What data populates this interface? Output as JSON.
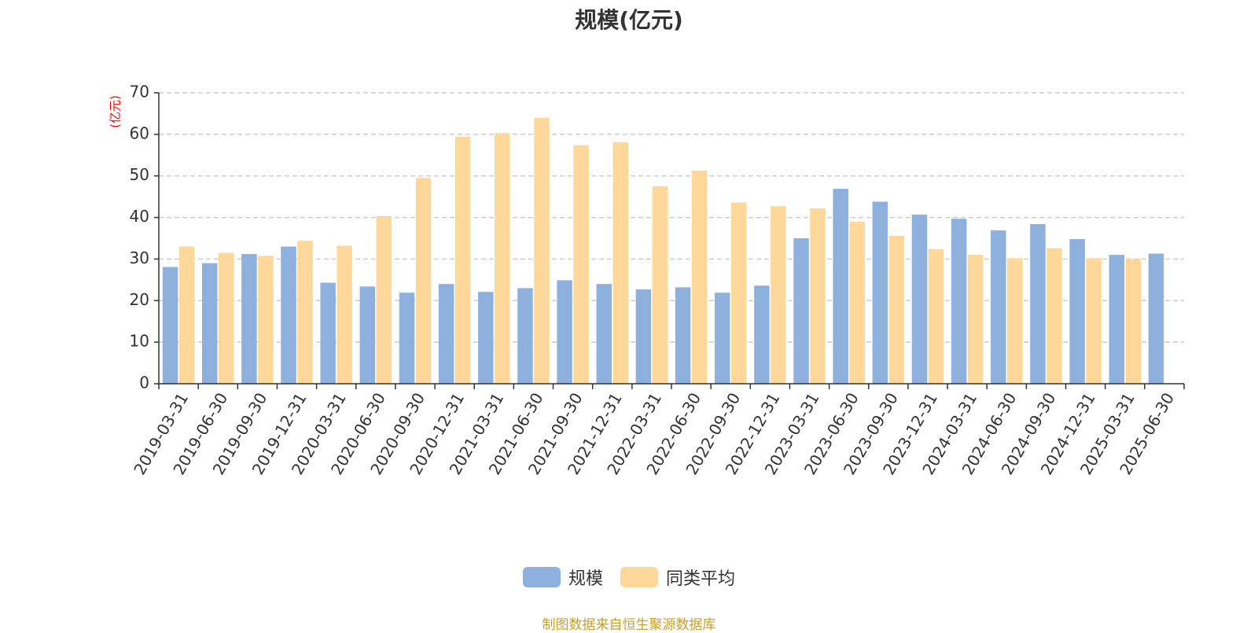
{
  "chart_data": {
    "type": "bar",
    "title": "规模(亿元)",
    "ylabel": "(亿元)",
    "ylim": [
      0,
      70
    ],
    "yticks": [
      0,
      10,
      20,
      30,
      40,
      50,
      60,
      70
    ],
    "grid": true,
    "legend_position": "bottom",
    "categories": [
      "2019-03-31",
      "2019-06-30",
      "2019-09-30",
      "2019-12-31",
      "2020-03-31",
      "2020-06-30",
      "2020-09-30",
      "2020-12-31",
      "2021-03-31",
      "2021-06-30",
      "2021-09-30",
      "2021-12-31",
      "2022-03-31",
      "2022-06-30",
      "2022-09-30",
      "2022-12-31",
      "2023-03-31",
      "2023-06-30",
      "2023-09-30",
      "2023-12-31",
      "2024-03-31",
      "2024-06-30",
      "2024-09-30",
      "2024-12-31",
      "2025-03-31",
      "2025-06-30"
    ],
    "series": [
      {
        "name": "规模",
        "color": "#8eb0dd",
        "values": [
          28.1,
          29.0,
          31.2,
          33.0,
          24.3,
          23.4,
          21.9,
          24.0,
          22.1,
          23.0,
          24.9,
          24.0,
          22.7,
          23.2,
          21.9,
          23.6,
          35.0,
          46.9,
          43.8,
          40.7,
          39.7,
          36.9,
          38.4,
          34.8,
          31.0,
          31.3
        ]
      },
      {
        "name": "同类平均",
        "color": "#fdd89a",
        "values": [
          33.0,
          31.5,
          30.8,
          34.4,
          33.2,
          40.3,
          49.5,
          59.4,
          60.3,
          64.0,
          57.4,
          58.1,
          47.5,
          51.3,
          43.6,
          42.7,
          42.2,
          39.0,
          35.6,
          32.4,
          31.0,
          30.2,
          32.6,
          30.2,
          30.0,
          null
        ]
      }
    ]
  },
  "source_note": "制图数据来自恒生聚源数据库",
  "colors": {
    "unit_label": "#ff0000",
    "source_note": "#c8a02a",
    "grid": "#cccccc",
    "axis": "#333333"
  }
}
